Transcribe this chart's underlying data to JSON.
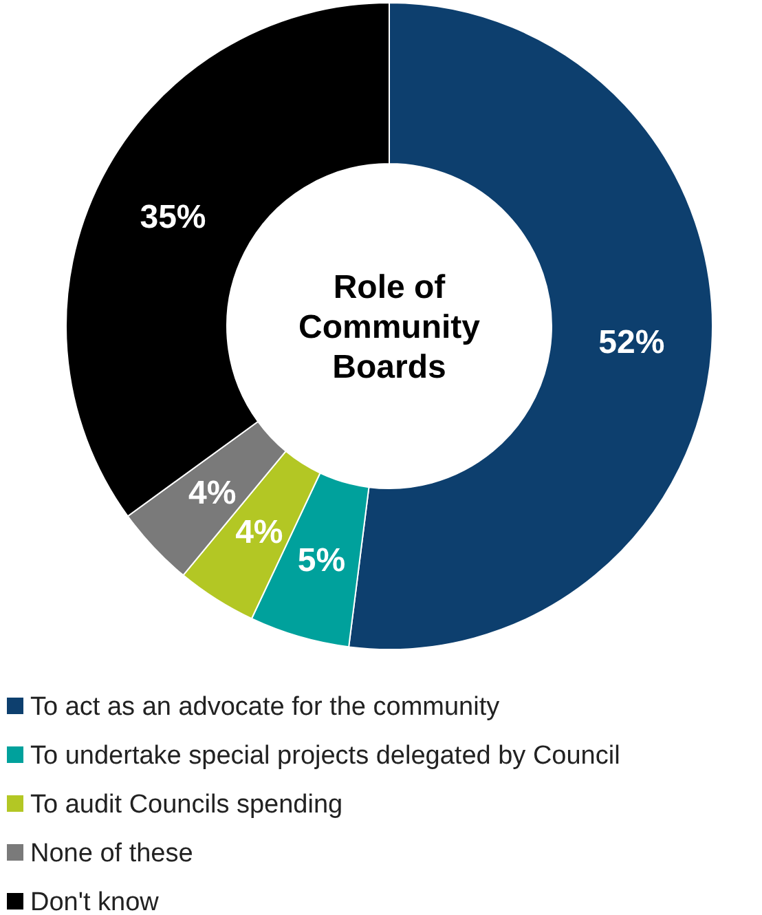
{
  "chart_data": {
    "type": "donut",
    "title": "Role of Community Boards",
    "categories": [
      "To act as an advocate for the community",
      "To undertake special projects delegated by Council",
      "To audit Councils spending",
      "None of these",
      "Don't know"
    ],
    "values": [
      52,
      5,
      4,
      4,
      35
    ],
    "value_labels": [
      "52%",
      "5%",
      "4%",
      "4%",
      "35%"
    ],
    "colors": [
      "#0d3f6e",
      "#00a19c",
      "#b3c724",
      "#7a7a7a",
      "#000000"
    ],
    "legend": "bottom"
  }
}
